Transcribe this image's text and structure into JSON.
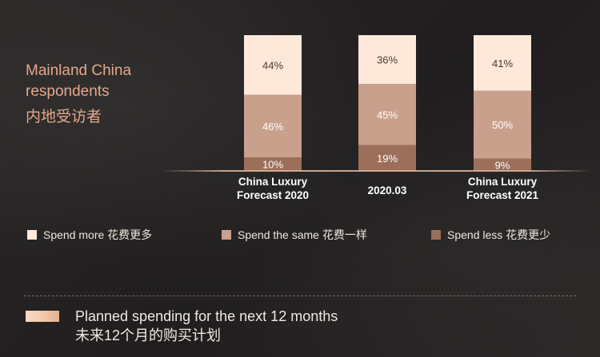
{
  "respondents": {
    "label_en": "Mainland China respondents",
    "label_zh": "内地受访者"
  },
  "chart_data": {
    "type": "bar",
    "stacked": true,
    "categories": [
      [
        "China Luxury",
        "Forecast 2020"
      ],
      [
        "2020.03"
      ],
      [
        "China Luxury",
        "Forecast 2021"
      ]
    ],
    "series": [
      {
        "name": "Spend less 花费更少",
        "values": [
          10,
          19,
          9
        ],
        "labels": [
          "10%",
          "19%",
          "9%"
        ],
        "color": "#9c6f5a",
        "text_color": "#ffffff"
      },
      {
        "name": "Spend the same 花费一样",
        "values": [
          46,
          45,
          50
        ],
        "labels": [
          "46%",
          "45%",
          "50%"
        ],
        "color": "#c9a08b",
        "text_color": "#ffffff"
      },
      {
        "name": "Spend more 花费更多",
        "values": [
          44,
          36,
          41
        ],
        "labels": [
          "44%",
          "36%",
          "41%"
        ],
        "color": "#fde8da",
        "text_color": "#4a3a33"
      }
    ],
    "ylim": [
      0,
      100
    ],
    "legend_position": "bottom",
    "legend_order": [
      "Spend more 花费更多",
      "Spend the same 花费一样",
      "Spend less 花费更少"
    ]
  },
  "footer": {
    "line_en": "Planned spending for the next 12 months",
    "line_zh": "未来12个月的购买计划"
  }
}
